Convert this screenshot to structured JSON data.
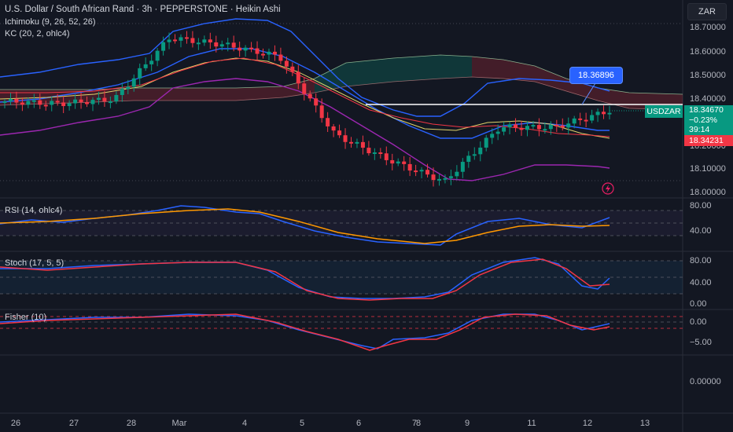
{
  "header": {
    "title": "U.S. Dollar / South African Rand · 3h · PEPPERSTONE · Heikin Ashi",
    "indicator1": "Ichimoku (9, 26, 52, 26)",
    "indicator2": "KC (20, 2, ohlc4)",
    "currency": "ZAR"
  },
  "price_axis": [
    "18.70000",
    "18.60000",
    "18.50000",
    "18.40000",
    "18.20000",
    "18.10000",
    "18.00000"
  ],
  "price_tags": {
    "symbol": "USDZAR",
    "last": "18.34670",
    "change": "−0.23%",
    "countdown": "39:14",
    "low": "18.34231",
    "callout": "18.36896"
  },
  "panes": {
    "rsi": {
      "label": "RSI (14, ohlc4)",
      "ticks": [
        "80.00",
        "40.00"
      ]
    },
    "stoch": {
      "label": "Stoch (17, 5, 5)",
      "ticks": [
        "80.00",
        "40.00",
        "0.00"
      ]
    },
    "fisher": {
      "label": "Fisher (10)",
      "ticks": [
        "0.00",
        "−5.00"
      ]
    },
    "empty": {
      "ticks": [
        "0.00000"
      ]
    }
  },
  "time_axis": [
    "26",
    "27",
    "28",
    "Mar",
    "4",
    "5",
    "6",
    "7",
    "8",
    "9",
    "11",
    "12",
    "13"
  ],
  "colors": {
    "up": "#089981",
    "down": "#f23645",
    "kc_mid": "#2962ff",
    "rsi_line": "#2962ff",
    "rsi_ma": "#ff9800",
    "stoch_k": "#2962ff",
    "stoch_d": "#f23645"
  },
  "chart_data": {
    "type": "line",
    "title": "U.S. Dollar / South African Rand · 3h · PEPPERSTONE · Heikin Ashi",
    "x": [
      "26",
      "27",
      "28",
      "Mar",
      "4",
      "5",
      "6",
      "7",
      "8",
      "9",
      "11",
      "12"
    ],
    "price_close": [
      18.39,
      18.38,
      18.4,
      18.66,
      18.63,
      18.58,
      18.25,
      18.14,
      18.05,
      18.28,
      18.28,
      18.35
    ],
    "ylim": [
      18.0,
      18.75
    ],
    "rsi_ylim": [
      20,
      90
    ],
    "stoch_ylim": [
      -5,
      100
    ],
    "fisher_ylim": [
      -7,
      2
    ]
  }
}
